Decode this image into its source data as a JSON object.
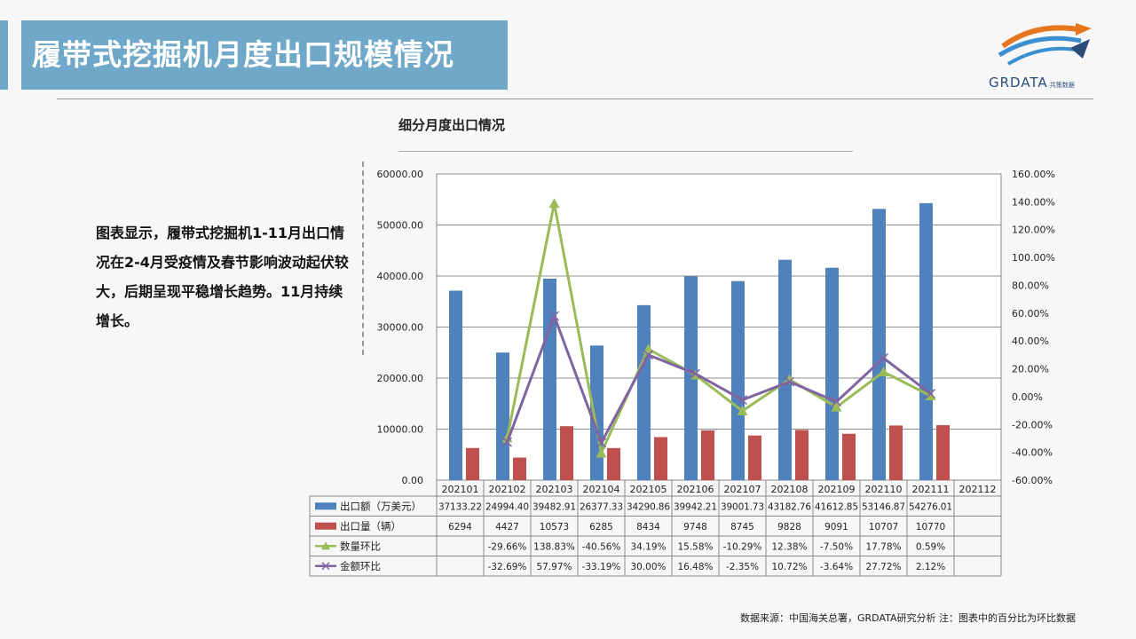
{
  "page_title": "履带式挖掘机月度出口规模情况",
  "logo": {
    "name": "GRDATA",
    "sub": "共策数据"
  },
  "description": "图表显示，履带式挖掘机1-11月出口情况在2-4月受疫情及春节影响波动起伏较大，后期呈现平稳增长趋势。11月持续增长。",
  "footer": "数据来源：中国海关总署，GRDATA研究分析  注：图表中的百分比为环比数据",
  "colors": {
    "title_bg": "#6fa8c8",
    "export_amount": "#4f81bd",
    "export_volume": "#c0504d",
    "qty_mom": "#9bbb59",
    "amt_mom": "#8064a2"
  },
  "chart_data": {
    "type": "bar",
    "title": "细分月度出口情况",
    "categories": [
      "202101",
      "202102",
      "202103",
      "202104",
      "202105",
      "202106",
      "202107",
      "202108",
      "202109",
      "202110",
      "202111",
      "202112"
    ],
    "ylim": [
      0,
      60000
    ],
    "y_ticks": [
      "0.00",
      "10000.00",
      "20000.00",
      "30000.00",
      "40000.00",
      "50000.00",
      "60000.00"
    ],
    "y2lim": [
      -60,
      160
    ],
    "y2_ticks": [
      "-60.00%",
      "-40.00%",
      "-20.00%",
      "0.00%",
      "20.00%",
      "40.00%",
      "60.00%",
      "80.00%",
      "100.00%",
      "120.00%",
      "140.00%",
      "160.00%"
    ],
    "grid": true,
    "legend": "table-below",
    "series": [
      {
        "name": "出口额（万美元）",
        "kind": "bar",
        "axis": "left",
        "color": "#4f81bd",
        "values": [
          37133.22,
          24994.4,
          39482.91,
          26377.33,
          34290.86,
          39942.21,
          39001.73,
          43182.76,
          41612.85,
          53146.87,
          54276.01,
          null
        ],
        "labels": [
          "37133.22",
          "24994.40",
          "39482.91",
          "26377.33",
          "34290.86",
          "39942.21",
          "39001.73",
          "43182.76",
          "41612.85",
          "53146.87",
          "54276.01",
          ""
        ]
      },
      {
        "name": "出口量（辆）",
        "kind": "bar",
        "axis": "left",
        "color": "#c0504d",
        "values": [
          6294,
          4427,
          10573,
          6285,
          8434,
          9748,
          8745,
          9828,
          9091,
          10707,
          10770,
          null
        ],
        "labels": [
          "6294",
          "4427",
          "10573",
          "6285",
          "8434",
          "9748",
          "8745",
          "9828",
          "9091",
          "10707",
          "10770",
          ""
        ]
      },
      {
        "name": "数量环比",
        "kind": "line",
        "axis": "right",
        "color": "#9bbb59",
        "marker": "triangle",
        "values": [
          null,
          -29.66,
          138.83,
          -40.56,
          34.19,
          15.58,
          -10.29,
          12.38,
          -7.5,
          17.78,
          0.59,
          null
        ],
        "labels": [
          "",
          "-29.66%",
          "138.83%",
          "-40.56%",
          "34.19%",
          "15.58%",
          "-10.29%",
          "12.38%",
          "-7.50%",
          "17.78%",
          "0.59%",
          ""
        ]
      },
      {
        "name": "金额环比",
        "kind": "line",
        "axis": "right",
        "color": "#8064a2",
        "marker": "x",
        "values": [
          null,
          -32.69,
          57.97,
          -33.19,
          30.0,
          16.48,
          -2.35,
          10.72,
          -3.64,
          27.72,
          2.12,
          null
        ],
        "labels": [
          "",
          "-32.69%",
          "57.97%",
          "-33.19%",
          "30.00%",
          "16.48%",
          "-2.35%",
          "10.72%",
          "-3.64%",
          "27.72%",
          "2.12%",
          ""
        ]
      }
    ]
  }
}
